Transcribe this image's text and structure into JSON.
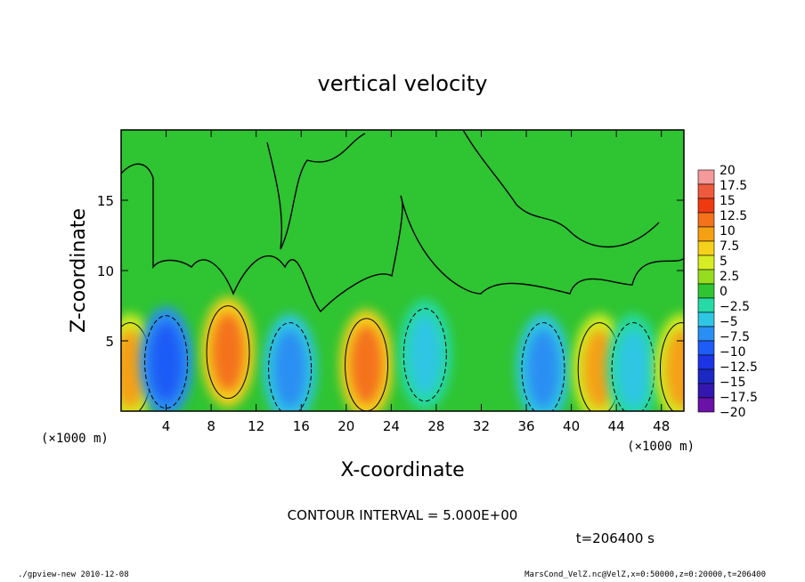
{
  "chart_data": {
    "type": "heatmap",
    "title": "vertical velocity",
    "xlabel": "X-coordinate",
    "ylabel": "Z-coordinate",
    "x_unit_left": "(×1000 m)",
    "x_unit_right": "(×1000 m)",
    "xlim": [
      0,
      50
    ],
    "ylim": [
      0,
      20
    ],
    "x_ticks": [
      4,
      8,
      12,
      16,
      20,
      24,
      28,
      32,
      36,
      40,
      44,
      48
    ],
    "y_ticks": [
      5,
      10,
      15
    ],
    "contour_interval_text": "CONTOUR INTERVAL = 5.000E+00",
    "time_text": "t=206400 s",
    "colorbar": {
      "levels": [
        "20",
        "17.5",
        "15",
        "12.5",
        "10",
        "7.5",
        "5",
        "2.5",
        "0",
        "-2.5",
        "-5",
        "-7.5",
        "-10",
        "-12.5",
        "-15",
        "-17.5",
        "-20"
      ],
      "colors": [
        "#f49a9a",
        "#ee5a3c",
        "#ef3a10",
        "#f4721a",
        "#f5a013",
        "#f6d11b",
        "#d6ec23",
        "#96dd1f",
        "#2fc432",
        "#27d9a5",
        "#2fc6e3",
        "#2a8ff3",
        "#1d5cf6",
        "#1c34e5",
        "#1c28c2",
        "#3417b0",
        "#6a12a8"
      ]
    },
    "cells": [
      {
        "x": 0.8,
        "z": 3.0,
        "value": 10
      },
      {
        "x": 4.0,
        "z": 3.5,
        "value": -10
      },
      {
        "x": 9.5,
        "z": 4.2,
        "value": 12.5
      },
      {
        "x": 15.0,
        "z": 3.0,
        "value": -7.5
      },
      {
        "x": 21.8,
        "z": 3.3,
        "value": 12.5
      },
      {
        "x": 27.0,
        "z": 4.0,
        "value": -5
      },
      {
        "x": 37.5,
        "z": 3.0,
        "value": -7.5
      },
      {
        "x": 42.5,
        "z": 3.0,
        "value": 10
      },
      {
        "x": 45.5,
        "z": 3.0,
        "value": -5
      },
      {
        "x": 49.8,
        "z": 3.0,
        "value": 10
      }
    ]
  },
  "footer": {
    "left": "./gpview-new  2010-12-08",
    "right": "MarsCond_VelZ.nc@VelZ,x=0:50000,z=0:20000,t=206400"
  }
}
